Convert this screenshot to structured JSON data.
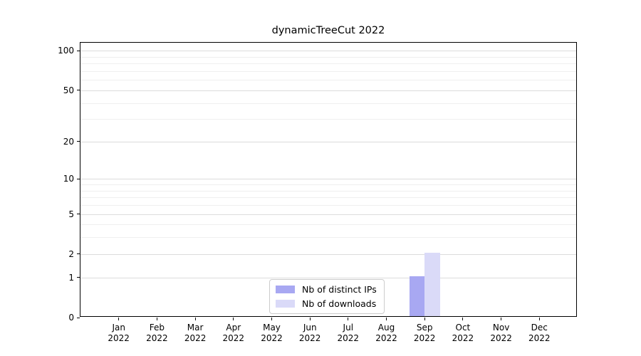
{
  "chart_data": {
    "type": "bar",
    "title": "dynamicTreeCut 2022",
    "categories": [
      "Jan 2022",
      "Feb 2022",
      "Mar 2022",
      "Apr 2022",
      "May 2022",
      "Jun 2022",
      "Jul 2022",
      "Aug 2022",
      "Sep 2022",
      "Oct 2022",
      "Nov 2022",
      "Dec 2022"
    ],
    "x_tick_months": [
      "Jan",
      "Feb",
      "Mar",
      "Apr",
      "May",
      "Jun",
      "Jul",
      "Aug",
      "Sep",
      "Oct",
      "Nov",
      "Dec"
    ],
    "x_tick_year": "2022",
    "series": [
      {
        "name": "Nb of distinct IPs",
        "color": "#a8a8f2",
        "values": [
          0,
          0,
          0,
          0,
          0,
          0,
          0,
          0,
          1,
          0,
          0,
          0
        ]
      },
      {
        "name": "Nb of downloads",
        "color": "#dadaf8",
        "values": [
          0,
          0,
          0,
          0,
          0,
          0,
          0,
          0,
          2,
          0,
          0,
          0
        ]
      }
    ],
    "y_ticks": [
      0,
      1,
      2,
      5,
      10,
      20,
      50,
      100
    ],
    "y_minor_ticks": [
      3,
      4,
      6,
      7,
      8,
      9,
      30,
      40,
      60,
      70,
      80,
      90
    ],
    "y_scale": "log1p",
    "ylim": [
      0,
      115
    ],
    "xlabel": "",
    "ylabel": "",
    "grid": true,
    "legend_position": "lower center",
    "colors": {
      "spine": "#000000",
      "grid_major": "#dcdcdc",
      "grid_minor": "#efefef",
      "background": "#ffffff",
      "bar_distinct_ips": "#a8a8f2",
      "bar_downloads": "#dadaf8"
    }
  }
}
